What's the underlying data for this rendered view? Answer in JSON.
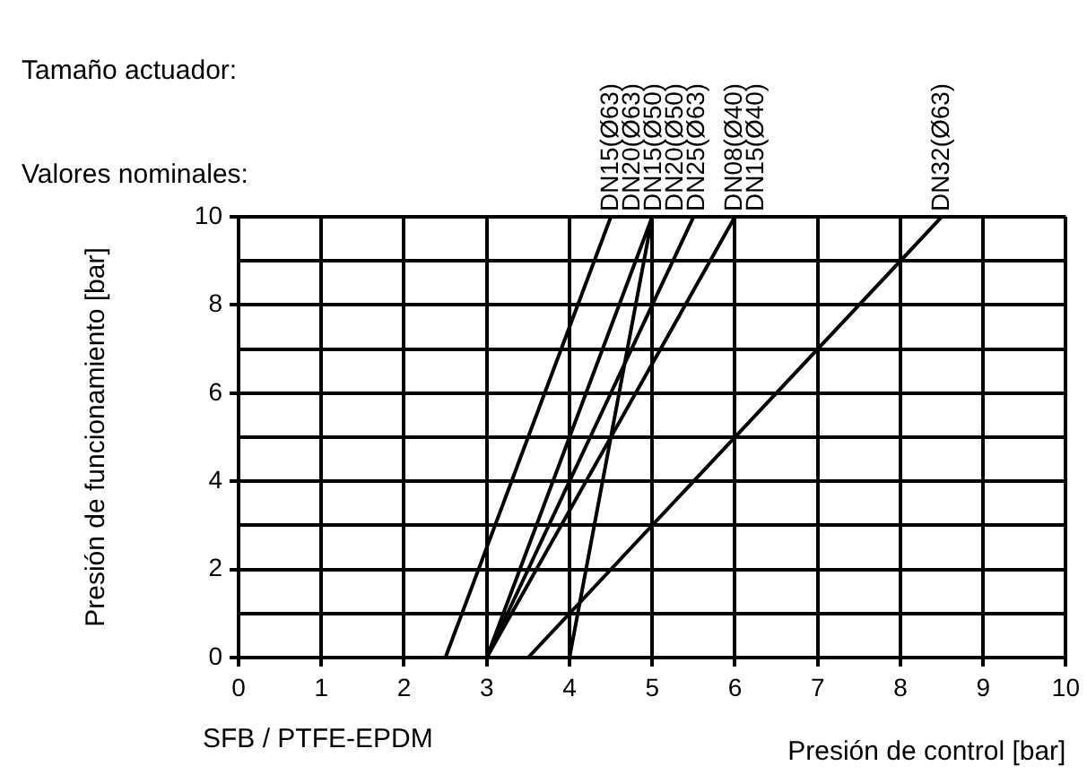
{
  "chart_data": {
    "type": "line",
    "xlabel": "Presión de control [bar]",
    "ylabel": "Presión de funcionamiento [bar]",
    "xlim": [
      0,
      10
    ],
    "ylim": [
      0,
      10
    ],
    "xticks": [
      0,
      1,
      2,
      3,
      4,
      5,
      6,
      7,
      8,
      9,
      10
    ],
    "yticks": [
      0,
      {
        "value": 1,
        "label": null
      },
      2,
      {
        "value": 3,
        "label": null
      },
      4,
      {
        "value": 5,
        "label": null
      },
      6,
      {
        "value": 7,
        "label": null
      },
      8,
      {
        "value": 9,
        "label": null
      },
      10
    ],
    "grid": true,
    "marker": "none",
    "line_style": "solid",
    "series": [
      {
        "color": "#000000",
        "x": [
          2.5,
          4.5
        ],
        "values": [
          0,
          10
        ]
      },
      {
        "color": "#000000",
        "x": [
          3,
          5
        ],
        "values": [
          0,
          10
        ]
      },
      {
        "color": "#000000",
        "x": [
          4,
          5
        ],
        "values": [
          0,
          10
        ]
      },
      {
        "color": "#000000",
        "x": [
          3,
          5.5
        ],
        "values": [
          0,
          10
        ]
      },
      {
        "color": "#000000",
        "x": [
          3,
          6
        ],
        "values": [
          0,
          10
        ]
      },
      {
        "color": "#000000",
        "x": [
          3.5,
          8.5
        ],
        "values": [
          0,
          10
        ]
      }
    ],
    "annotations": [
      "Tamaño actuador:",
      "Valores nominales:",
      "SFB / PTFE-EPDM",
      {
        "text": "DN15(Ø63)",
        "x": 4.5,
        "y": 10
      },
      {
        "text": "DN20(Ø63)",
        "x": 4.5,
        "y": 10
      },
      {
        "text": "DN15(Ø50)",
        "x": 5,
        "y": 10
      },
      {
        "text": "DN20(Ø50)",
        "x": 5,
        "y": 10
      },
      {
        "text": "DN25(Ø63)",
        "x": 5.5,
        "y": 10
      },
      {
        "text": "DN08(Ø40)",
        "x": 6,
        "y": 10
      },
      {
        "text": "DN15(Ø40)",
        "x": 6,
        "y": 10
      },
      {
        "text": "DN32(Ø63)",
        "x": 8.5,
        "y": 10
      }
    ]
  }
}
